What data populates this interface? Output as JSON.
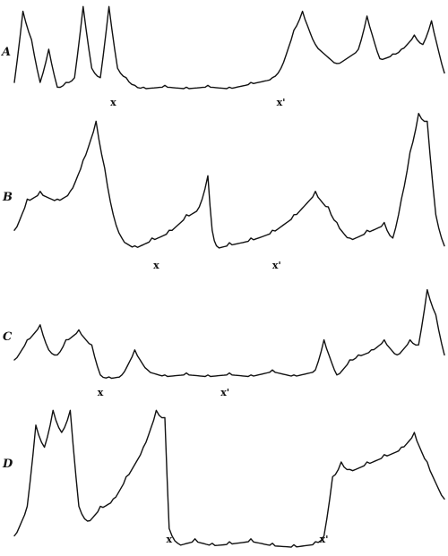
{
  "chart_data": [
    {
      "type": "line",
      "panel_label": "A",
      "markers": [
        "x",
        "x'"
      ],
      "marker_x": [
        0.23,
        0.62
      ],
      "ylim": [
        0,
        1
      ],
      "series": [
        {
          "x": [
            0,
            0.02,
            0.04,
            0.06,
            0.08,
            0.1,
            0.12,
            0.14,
            0.16,
            0.18,
            0.2,
            0.22,
            0.24,
            0.26,
            0.28,
            0.3,
            0.35,
            0.4,
            0.45,
            0.5,
            0.55,
            0.6,
            0.62,
            0.65,
            0.67,
            0.7,
            0.75,
            0.8,
            0.82,
            0.85,
            0.88,
            0.9,
            0.93,
            0.95,
            0.97,
            1
          ],
          "y": [
            0.15,
            0.9,
            0.6,
            0.15,
            0.5,
            0.1,
            0.15,
            0.2,
            0.95,
            0.3,
            0.2,
            0.95,
            0.3,
            0.2,
            0.12,
            0.1,
            0.12,
            0.1,
            0.12,
            0.1,
            0.15,
            0.2,
            0.3,
            0.7,
            0.9,
            0.55,
            0.35,
            0.5,
            0.85,
            0.4,
            0.45,
            0.5,
            0.65,
            0.55,
            0.8,
            0.25
          ]
        }
      ]
    },
    {
      "type": "line",
      "panel_label": "B",
      "markers": [
        "x",
        "x'"
      ],
      "marker_x": [
        0.33,
        0.61
      ],
      "ylim": [
        0,
        1
      ],
      "series": [
        {
          "x": [
            0,
            0.03,
            0.06,
            0.1,
            0.13,
            0.16,
            0.19,
            0.21,
            0.23,
            0.25,
            0.28,
            0.32,
            0.36,
            0.4,
            0.43,
            0.45,
            0.46,
            0.47,
            0.5,
            0.55,
            0.6,
            0.65,
            0.7,
            0.73,
            0.75,
            0.78,
            0.82,
            0.86,
            0.88,
            0.9,
            0.92,
            0.94,
            0.96,
            0.98,
            1
          ],
          "y": [
            0.2,
            0.4,
            0.45,
            0.4,
            0.45,
            0.65,
            0.9,
            0.6,
            0.3,
            0.15,
            0.1,
            0.15,
            0.2,
            0.3,
            0.35,
            0.55,
            0.2,
            0.1,
            0.12,
            0.15,
            0.2,
            0.3,
            0.45,
            0.35,
            0.25,
            0.15,
            0.2,
            0.25,
            0.15,
            0.4,
            0.7,
            0.95,
            0.9,
            0.3,
            0.1
          ]
        }
      ]
    },
    {
      "type": "line",
      "panel_label": "C",
      "markers": [
        "x",
        "x'"
      ],
      "marker_x": [
        0.2,
        0.49
      ],
      "ylim": [
        0,
        1
      ],
      "series": [
        {
          "x": [
            0,
            0.03,
            0.06,
            0.08,
            0.1,
            0.12,
            0.15,
            0.18,
            0.2,
            0.22,
            0.25,
            0.28,
            0.31,
            0.35,
            0.4,
            0.45,
            0.5,
            0.55,
            0.6,
            0.65,
            0.7,
            0.72,
            0.75,
            0.78,
            0.8,
            0.83,
            0.86,
            0.89,
            0.92,
            0.94,
            0.96,
            0.98,
            1
          ],
          "y": [
            0.25,
            0.45,
            0.6,
            0.35,
            0.3,
            0.45,
            0.55,
            0.4,
            0.1,
            0.08,
            0.1,
            0.35,
            0.15,
            0.1,
            0.12,
            0.1,
            0.12,
            0.1,
            0.15,
            0.1,
            0.15,
            0.45,
            0.1,
            0.25,
            0.3,
            0.35,
            0.45,
            0.3,
            0.45,
            0.4,
            0.95,
            0.7,
            0.3
          ]
        }
      ]
    },
    {
      "type": "line",
      "panel_label": "D",
      "markers": [
        "x",
        "x'"
      ],
      "marker_x": [
        0.36,
        0.72
      ],
      "ylim": [
        0,
        1
      ],
      "series": [
        {
          "x": [
            0,
            0.03,
            0.05,
            0.07,
            0.09,
            0.11,
            0.13,
            0.15,
            0.17,
            0.2,
            0.23,
            0.26,
            0.3,
            0.33,
            0.35,
            0.36,
            0.38,
            0.42,
            0.46,
            0.5,
            0.55,
            0.6,
            0.65,
            0.7,
            0.72,
            0.74,
            0.76,
            0.78,
            0.82,
            0.86,
            0.9,
            0.93,
            0.96,
            1
          ],
          "y": [
            0.1,
            0.3,
            0.85,
            0.7,
            0.95,
            0.8,
            0.95,
            0.3,
            0.2,
            0.3,
            0.35,
            0.5,
            0.7,
            0.95,
            0.9,
            0.15,
            0.05,
            0.08,
            0.05,
            0.06,
            0.08,
            0.05,
            0.04,
            0.06,
            0.1,
            0.5,
            0.6,
            0.55,
            0.6,
            0.65,
            0.7,
            0.8,
            0.6,
            0.35
          ]
        }
      ]
    }
  ]
}
